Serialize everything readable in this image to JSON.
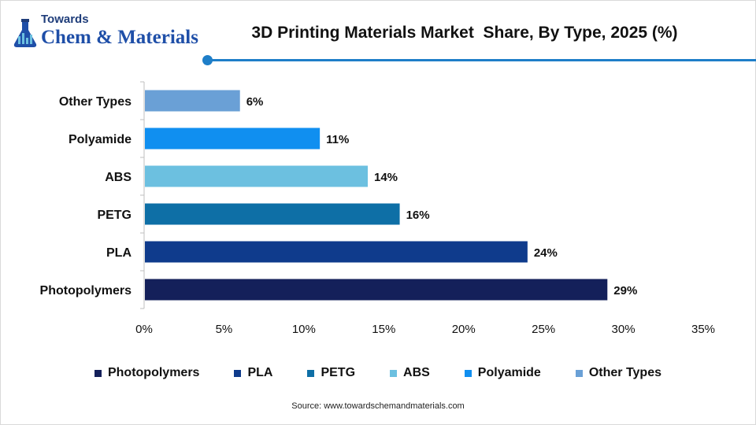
{
  "brand": {
    "line1": "Towards",
    "line2": "Chem & Materials"
  },
  "title": "3D Printing Materials Market  Share, By Type, 2025 (%)",
  "source": "Source:  www.towardschemandmaterials.com",
  "colors": {
    "accent": "#1e7ec8",
    "axis": "#bfbfbf"
  },
  "chart_data": {
    "type": "bar",
    "orientation": "horizontal",
    "categories": [
      "Photopolymers",
      "PLA",
      "PETG",
      "ABS",
      "Polyamide",
      "Other Types"
    ],
    "values": [
      29,
      24,
      16,
      14,
      11,
      6
    ],
    "value_labels": [
      "29%",
      "24%",
      "16%",
      "14%",
      "11%",
      "6%"
    ],
    "colors": [
      "#14205a",
      "#0f3b8c",
      "#0e6fa6",
      "#6cc0e0",
      "#108ff0",
      "#6aa0d6"
    ],
    "xlim": [
      0,
      35
    ],
    "x_ticks": [
      0,
      5,
      10,
      15,
      20,
      25,
      30,
      35
    ],
    "x_tick_labels": [
      "0%",
      "5%",
      "10%",
      "15%",
      "20%",
      "25%",
      "30%",
      "35%"
    ],
    "grid": false,
    "legend_position": "bottom",
    "legend": [
      "Photopolymers",
      "PLA",
      "PETG",
      "ABS",
      "Polyamide",
      "Other Types"
    ]
  }
}
